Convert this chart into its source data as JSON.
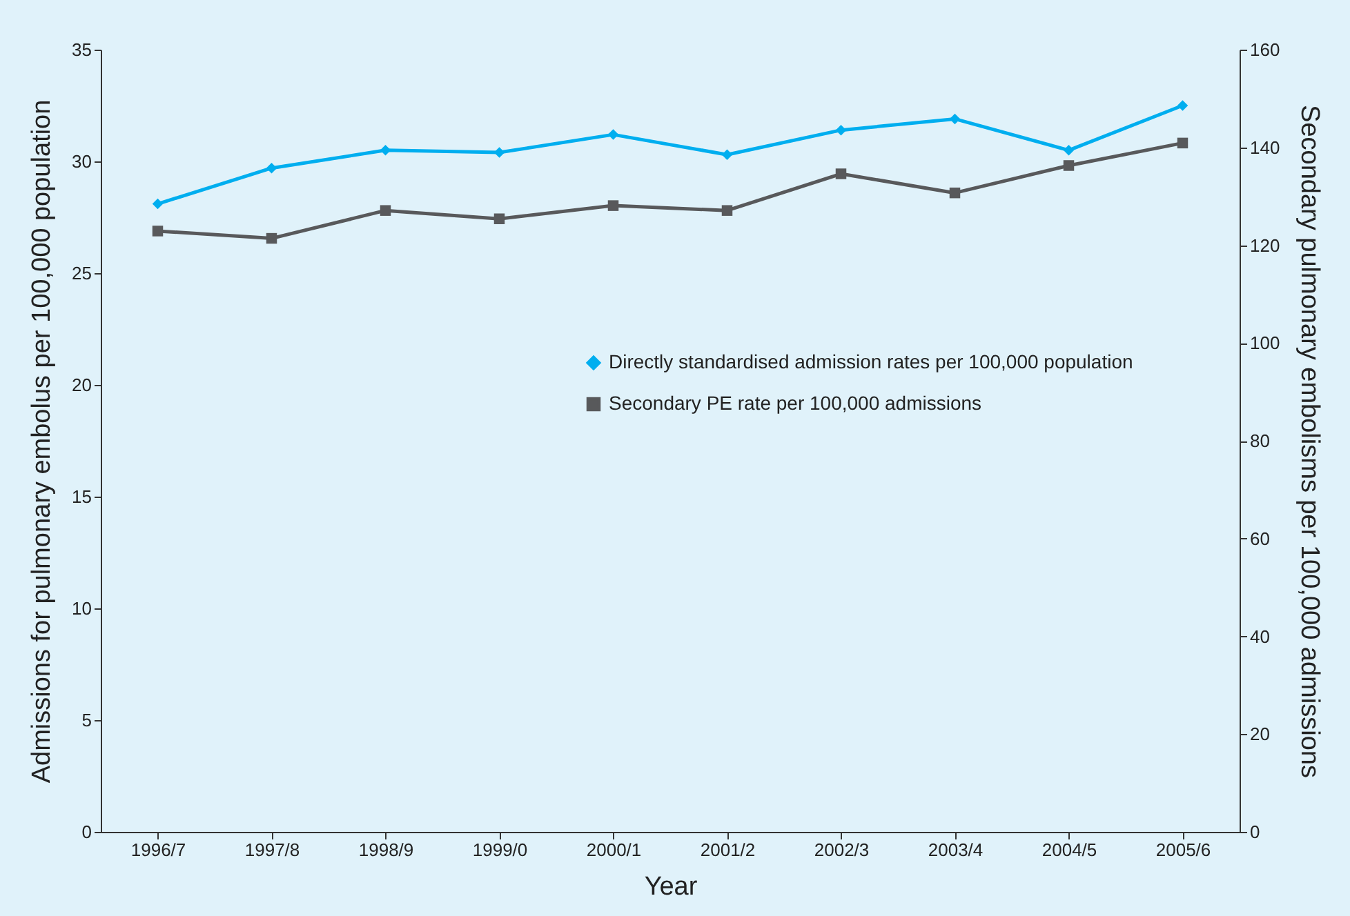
{
  "chart_data": {
    "type": "line",
    "xlabel": "Year",
    "ylabel": "Admissions for pulmonary embolus per 100,000 population",
    "y2label": "Secondary pulmonary embolisms per 100,000 admissions",
    "categories": [
      "1996/7",
      "1997/8",
      "1998/9",
      "1999/0",
      "2000/1",
      "2001/2",
      "2002/3",
      "2003/4",
      "2004/5",
      "2005/6"
    ],
    "series": [
      {
        "name": "Directly standardised admission rates per 100,000 population",
        "color": "#00aeef",
        "marker": "diamond",
        "values": [
          28.1,
          29.7,
          30.5,
          30.4,
          31.2,
          30.3,
          31.4,
          31.9,
          30.5,
          32.5
        ]
      },
      {
        "name": "Secondary PE rate per 100,000 admissions",
        "color": "#58595b",
        "marker": "square",
        "axis": "y2",
        "values": [
          122.9,
          121.4,
          127.1,
          125.4,
          128.1,
          127.1,
          134.6,
          130.7,
          136.3,
          140.9
        ]
      }
    ],
    "ylim": [
      0,
      35
    ],
    "yticks": [
      0,
      5,
      10,
      15,
      20,
      25,
      30,
      35
    ],
    "y2lim": [
      0,
      160
    ],
    "y2ticks": [
      0,
      20,
      40,
      60,
      80,
      100,
      120,
      140,
      160
    ],
    "grid": false,
    "legend": "right"
  }
}
